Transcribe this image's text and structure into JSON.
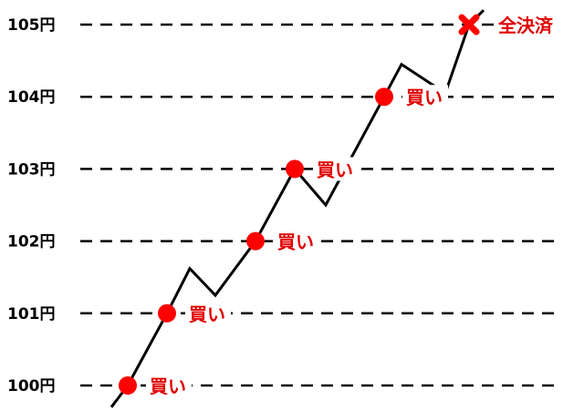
{
  "chart_data": {
    "type": "line",
    "colors": {
      "line": "#000000",
      "grid": "#000000",
      "marker": "#ff0000",
      "marker_text": "#e00000"
    },
    "grid": {
      "dashed": true
    },
    "y_levels": [
      {
        "value": 100,
        "label": "100円"
      },
      {
        "value": 101,
        "label": "101円"
      },
      {
        "value": 102,
        "label": "102円"
      },
      {
        "value": 103,
        "label": "103円"
      },
      {
        "value": 104,
        "label": "104円"
      },
      {
        "value": 105,
        "label": "105円"
      }
    ],
    "price_path": [
      99.7,
      100.0,
      101.0,
      101.62,
      101.25,
      102.0,
      103.0,
      102.5,
      104.0,
      104.45,
      104.05,
      105.0,
      105.2
    ],
    "markers": [
      {
        "value": 100,
        "shape": "dot",
        "label": "買い"
      },
      {
        "value": 101,
        "shape": "dot",
        "label": "買い"
      },
      {
        "value": 102,
        "shape": "dot",
        "label": "買い"
      },
      {
        "value": 103,
        "shape": "dot",
        "label": "買い"
      },
      {
        "value": 104,
        "shape": "dot",
        "label": "買い"
      },
      {
        "value": 105,
        "shape": "cross",
        "label": "全決済"
      }
    ]
  }
}
